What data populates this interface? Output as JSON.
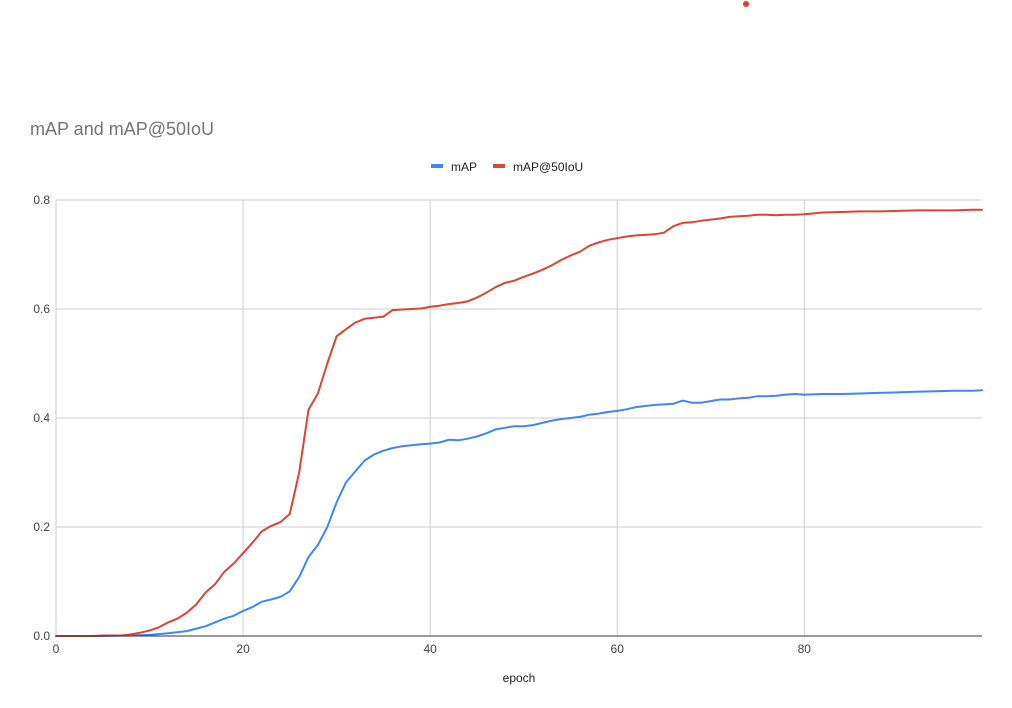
{
  "colors": {
    "mAP": "#4285f4",
    "mAP@50IoU": "#db4437",
    "grid": "#cccccc",
    "baseline": "#333333",
    "marker": "#e53935"
  },
  "chart_data": {
    "type": "line",
    "title": "mAP and mAP@50IoU",
    "xlabel": "epoch",
    "ylabel": "",
    "xlim": [
      0,
      99
    ],
    "ylim": [
      0,
      0.8
    ],
    "x_ticks": [
      0,
      20,
      40,
      60,
      80
    ],
    "y_ticks": [
      0.0,
      0.2,
      0.4,
      0.6,
      0.8
    ],
    "x_tick_labels": [
      "0",
      "20",
      "40",
      "60",
      "80"
    ],
    "y_tick_labels": [
      "0.0",
      "0.2",
      "0.4",
      "0.6",
      "0.8"
    ],
    "grid": true,
    "legend_position": "top-center",
    "series": [
      {
        "name": "mAP",
        "color": "#4285f4",
        "points": [
          [
            0,
            0
          ],
          [
            5,
            0
          ],
          [
            8,
            0.001
          ],
          [
            10,
            0.002
          ],
          [
            12,
            0.005
          ],
          [
            14,
            0.009
          ],
          [
            16,
            0.018
          ],
          [
            17,
            0.025
          ],
          [
            18,
            0.032
          ],
          [
            19,
            0.037
          ],
          [
            20,
            0.046
          ],
          [
            21,
            0.053
          ],
          [
            22,
            0.063
          ],
          [
            23,
            0.067
          ],
          [
            24,
            0.072
          ],
          [
            25,
            0.082
          ],
          [
            26,
            0.108
          ],
          [
            27,
            0.145
          ],
          [
            28,
            0.167
          ],
          [
            29,
            0.2
          ],
          [
            30,
            0.245
          ],
          [
            31,
            0.282
          ],
          [
            32,
            0.302
          ],
          [
            33,
            0.322
          ],
          [
            34,
            0.333
          ],
          [
            35,
            0.34
          ],
          [
            36,
            0.345
          ],
          [
            37,
            0.348
          ],
          [
            38,
            0.35
          ],
          [
            39,
            0.352
          ],
          [
            40,
            0.353
          ],
          [
            41,
            0.355
          ],
          [
            42,
            0.36
          ],
          [
            43,
            0.359
          ],
          [
            44,
            0.362
          ],
          [
            45,
            0.366
          ],
          [
            46,
            0.372
          ],
          [
            47,
            0.379
          ],
          [
            48,
            0.382
          ],
          [
            49,
            0.385
          ],
          [
            50,
            0.385
          ],
          [
            51,
            0.387
          ],
          [
            52,
            0.391
          ],
          [
            53,
            0.395
          ],
          [
            54,
            0.398
          ],
          [
            55,
            0.4
          ],
          [
            56,
            0.402
          ],
          [
            57,
            0.406
          ],
          [
            58,
            0.408
          ],
          [
            59,
            0.411
          ],
          [
            60,
            0.413
          ],
          [
            61,
            0.416
          ],
          [
            62,
            0.42
          ],
          [
            63,
            0.422
          ],
          [
            64,
            0.424
          ],
          [
            65,
            0.425
          ],
          [
            66,
            0.426
          ],
          [
            67,
            0.432
          ],
          [
            68,
            0.428
          ],
          [
            69,
            0.428
          ],
          [
            70,
            0.431
          ],
          [
            71,
            0.434
          ],
          [
            72,
            0.434
          ],
          [
            73,
            0.436
          ],
          [
            74,
            0.437
          ],
          [
            75,
            0.44
          ],
          [
            76,
            0.44
          ],
          [
            77,
            0.441
          ],
          [
            78,
            0.443
          ],
          [
            79,
            0.444
          ],
          [
            80,
            0.443
          ],
          [
            82,
            0.444
          ],
          [
            84,
            0.444
          ],
          [
            86,
            0.445
          ],
          [
            88,
            0.446
          ],
          [
            90,
            0.447
          ],
          [
            92,
            0.448
          ],
          [
            94,
            0.449
          ],
          [
            96,
            0.45
          ],
          [
            98,
            0.45
          ],
          [
            99,
            0.451
          ]
        ]
      },
      {
        "name": "mAP@50IoU",
        "color": "#db4437",
        "points": [
          [
            0,
            0
          ],
          [
            4,
            0
          ],
          [
            5,
            0.001
          ],
          [
            7,
            0.001
          ],
          [
            8,
            0.003
          ],
          [
            9,
            0.006
          ],
          [
            10,
            0.01
          ],
          [
            11,
            0.016
          ],
          [
            12,
            0.025
          ],
          [
            13,
            0.032
          ],
          [
            14,
            0.043
          ],
          [
            15,
            0.058
          ],
          [
            16,
            0.08
          ],
          [
            17,
            0.095
          ],
          [
            18,
            0.118
          ],
          [
            19,
            0.133
          ],
          [
            20,
            0.152
          ],
          [
            21,
            0.171
          ],
          [
            22,
            0.192
          ],
          [
            23,
            0.202
          ],
          [
            24,
            0.209
          ],
          [
            25,
            0.224
          ],
          [
            26,
            0.3
          ],
          [
            27,
            0.415
          ],
          [
            28,
            0.445
          ],
          [
            29,
            0.5
          ],
          [
            30,
            0.55
          ],
          [
            31,
            0.563
          ],
          [
            32,
            0.575
          ],
          [
            33,
            0.582
          ],
          [
            34,
            0.584
          ],
          [
            35,
            0.586
          ],
          [
            36,
            0.598
          ],
          [
            37,
            0.599
          ],
          [
            38,
            0.6
          ],
          [
            39,
            0.601
          ],
          [
            40,
            0.604
          ],
          [
            41,
            0.606
          ],
          [
            42,
            0.609
          ],
          [
            43,
            0.611
          ],
          [
            44,
            0.614
          ],
          [
            45,
            0.621
          ],
          [
            46,
            0.63
          ],
          [
            47,
            0.64
          ],
          [
            48,
            0.648
          ],
          [
            49,
            0.652
          ],
          [
            50,
            0.659
          ],
          [
            51,
            0.665
          ],
          [
            52,
            0.672
          ],
          [
            53,
            0.68
          ],
          [
            54,
            0.69
          ],
          [
            55,
            0.698
          ],
          [
            56,
            0.705
          ],
          [
            57,
            0.716
          ],
          [
            58,
            0.722
          ],
          [
            59,
            0.727
          ],
          [
            60,
            0.73
          ],
          [
            61,
            0.733
          ],
          [
            62,
            0.735
          ],
          [
            63,
            0.736
          ],
          [
            64,
            0.737
          ],
          [
            65,
            0.74
          ],
          [
            66,
            0.752
          ],
          [
            67,
            0.758
          ],
          [
            68,
            0.759
          ],
          [
            69,
            0.762
          ],
          [
            70,
            0.764
          ],
          [
            71,
            0.766
          ],
          [
            72,
            0.769
          ],
          [
            73,
            0.77
          ],
          [
            74,
            0.771
          ],
          [
            75,
            0.773
          ],
          [
            76,
            0.773
          ],
          [
            77,
            0.772
          ],
          [
            78,
            0.773
          ],
          [
            79,
            0.773
          ],
          [
            80,
            0.774
          ],
          [
            82,
            0.777
          ],
          [
            84,
            0.778
          ],
          [
            86,
            0.779
          ],
          [
            88,
            0.779
          ],
          [
            90,
            0.78
          ],
          [
            92,
            0.781
          ],
          [
            94,
            0.781
          ],
          [
            96,
            0.781
          ],
          [
            98,
            0.782
          ],
          [
            99,
            0.782
          ]
        ]
      }
    ]
  }
}
